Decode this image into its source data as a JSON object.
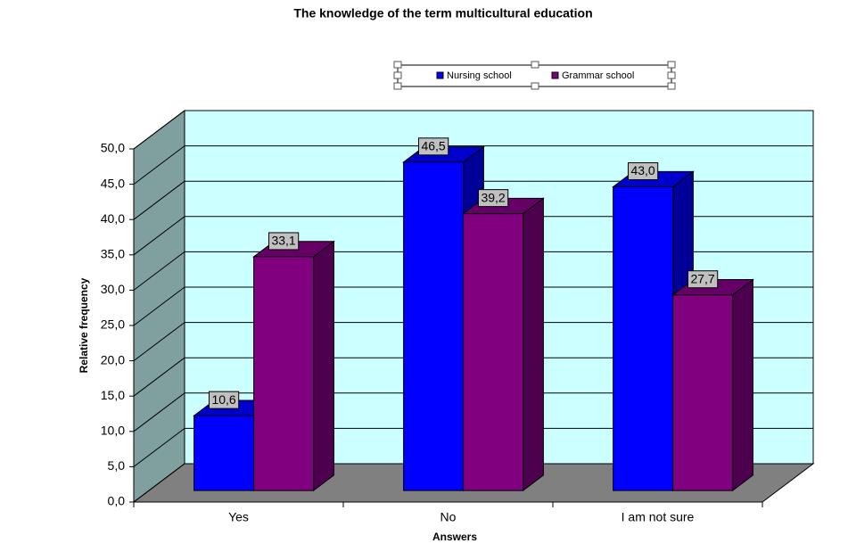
{
  "chart_data": {
    "type": "bar3d",
    "title": "The knowledge of the term multicultural education",
    "xlabel": "Answers",
    "ylabel": "Relative frequency",
    "categories": [
      "Yes",
      "No",
      "I am not sure"
    ],
    "series": [
      {
        "name": "Nursing school",
        "color": "#0000ff",
        "values": [
          10.6,
          46.5,
          43.0
        ],
        "value_labels": [
          "10,6",
          "46,5",
          "43,0"
        ]
      },
      {
        "name": "Grammar school",
        "color": "#800080",
        "values": [
          33.1,
          39.2,
          27.7
        ],
        "value_labels": [
          "33,1",
          "39,2",
          "27,7"
        ]
      }
    ],
    "ylim": [
      0,
      50
    ],
    "yticks": [
      {
        "value": 0,
        "label": "0,0"
      },
      {
        "value": 5,
        "label": "5,0"
      },
      {
        "value": 10,
        "label": "10,0"
      },
      {
        "value": 15,
        "label": "15,0"
      },
      {
        "value": 20,
        "label": "20,0"
      },
      {
        "value": 25,
        "label": "25,0"
      },
      {
        "value": 30,
        "label": "30,0"
      },
      {
        "value": 35,
        "label": "35,0"
      },
      {
        "value": 40,
        "label": "40,0"
      },
      {
        "value": 45,
        "label": "45,0"
      },
      {
        "value": 50,
        "label": "50,0"
      }
    ],
    "grid": true
  }
}
